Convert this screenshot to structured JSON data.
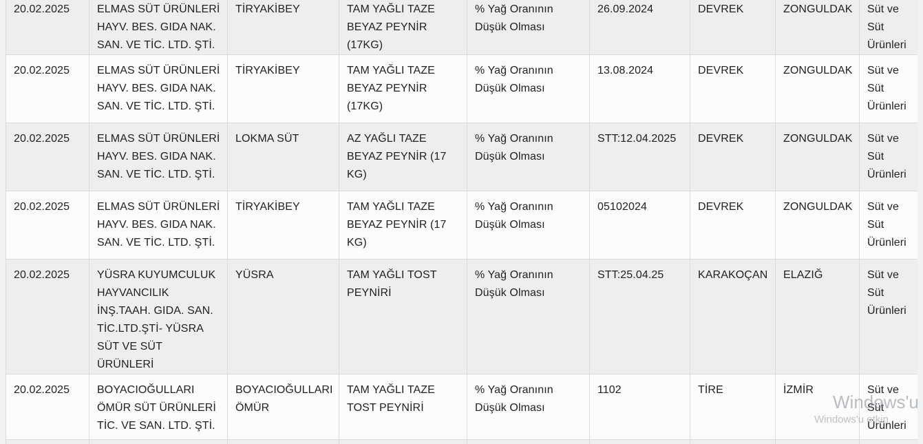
{
  "page": {
    "background_color": "#f1f2f4",
    "row_color_shaded": "#eeeeee",
    "row_color_plain": "#fcfcfd",
    "border_color": "#dcdcdc",
    "text_color": "#202124"
  },
  "table": {
    "column_keys": [
      "date",
      "firm",
      "brand",
      "product",
      "issue",
      "batch",
      "district",
      "province",
      "category"
    ],
    "rows": [
      {
        "date": "20.02.2025",
        "firm": "ELMAS SÜT ÜRÜNLERİ HAYV. BES. GIDA NAK. SAN. VE TİC. LTD. ŞTİ.",
        "brand": "TİRYAKİBEY",
        "product": "TAM YAĞLI TAZE BEYAZ PEYNİR (17KG)",
        "issue": "% Yağ Oranının Düşük Olması",
        "batch": "26.09.2024",
        "district": "DEVREK",
        "province": "ZONGULDAK",
        "category": "Süt ve Süt Ürünleri"
      },
      {
        "date": "20.02.2025",
        "firm": "ELMAS SÜT ÜRÜNLERİ HAYV. BES. GIDA NAK. SAN. VE TİC. LTD. ŞTİ.",
        "brand": "TİRYAKİBEY",
        "product": "TAM YAĞLI TAZE BEYAZ PEYNİR (17KG)",
        "issue": "% Yağ Oranının Düşük Olması",
        "batch": "13.08.2024",
        "district": "DEVREK",
        "province": "ZONGULDAK",
        "category": "Süt ve Süt Ürünleri"
      },
      {
        "date": "20.02.2025",
        "firm": "ELMAS SÜT ÜRÜNLERİ HAYV. BES. GIDA NAK. SAN. VE TİC. LTD. ŞTİ.",
        "brand": "LOKMA SÜT",
        "product": "AZ YAĞLI TAZE BEYAZ PEYNİR (17 KG)",
        "issue": "% Yağ Oranının Düşük Olması",
        "batch": "STT:12.04.2025",
        "district": "DEVREK",
        "province": "ZONGULDAK",
        "category": "Süt ve Süt Ürünleri"
      },
      {
        "date": "20.02.2025",
        "firm": "ELMAS SÜT ÜRÜNLERİ HAYV. BES. GIDA NAK. SAN. VE TİC. LTD. ŞTİ.",
        "brand": "TİRYAKİBEY",
        "product": "TAM YAĞLI TAZE BEYAZ PEYNİR (17 KG)",
        "issue": "% Yağ Oranının Düşük Olması",
        "batch": "05102024",
        "district": "DEVREK",
        "province": "ZONGULDAK",
        "category": "Süt ve Süt Ürünleri"
      },
      {
        "date": "20.02.2025",
        "firm": "YÜSRA KUYUMCULUK HAYVANCILIK İNŞ.TAAH. GIDA. SAN. TİC.LTD.ŞTİ- YÜSRA SÜT VE SÜT ÜRÜNLERİ",
        "brand": "YÜSRA",
        "product": "TAM YAĞLI TOST PEYNİRİ",
        "issue": "% Yağ Oranının Düşük Olması",
        "batch": "STT:25.04.25",
        "district": "KARAKOÇAN",
        "province": "ELAZIĞ",
        "category": "Süt ve Süt Ürünleri"
      },
      {
        "date": "20.02.2025",
        "firm": "BOYACIOĞULLARI ÖMÜR SÜT ÜRÜNLERİ TİC. VE SAN. LTD. ŞTİ.",
        "brand": "BOYACIOĞULLARI ÖMÜR",
        "product": "TAM YAĞLI TAZE TOST PEYNİRİ",
        "issue": "% Yağ Oranının Düşük Olması",
        "batch": "1102",
        "district": "TİRE",
        "province": "İZMİR",
        "category": "Süt ve Süt Ürünleri"
      },
      {
        "date": "",
        "firm": "",
        "brand": "",
        "product": "",
        "issue": "",
        "batch": "",
        "district": "",
        "province": "",
        "category": ""
      }
    ]
  },
  "watermark": {
    "line1": "Windows'u",
    "line2": "Windows'u etkin"
  }
}
